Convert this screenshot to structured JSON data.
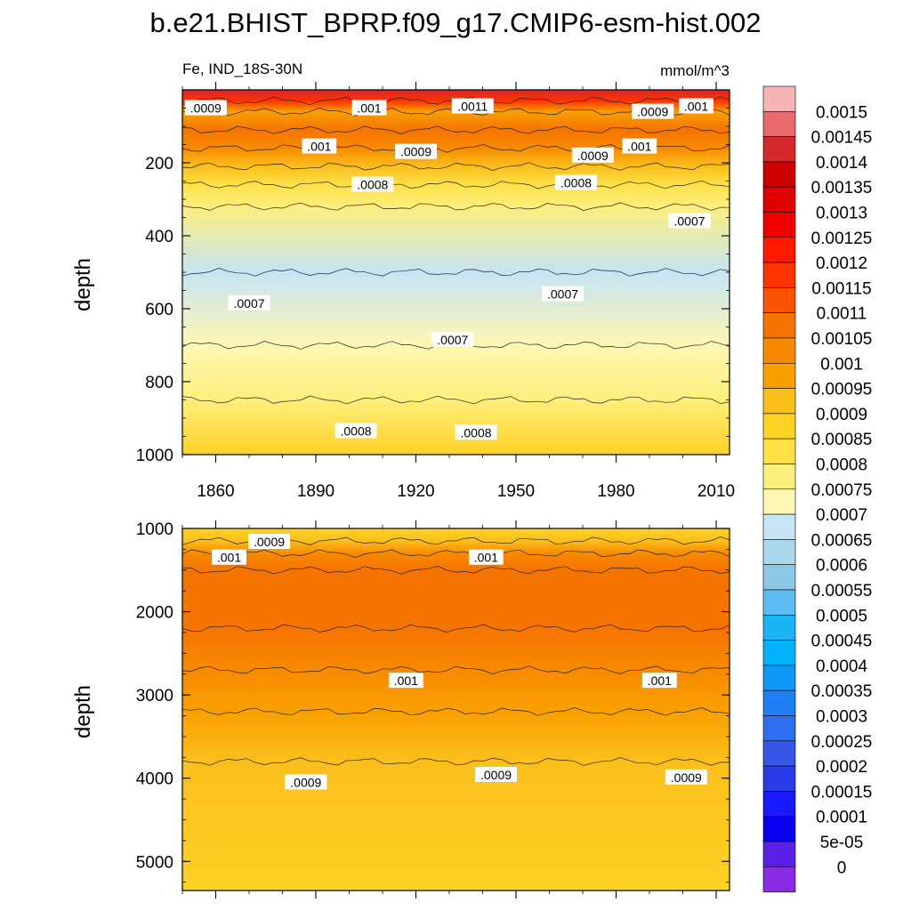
{
  "figure": {
    "title": "b.e21.BHIST_BPRP.f09_g17.CMIP6-esm-hist.002",
    "left_string": "Fe, IND_18S-30N",
    "right_string": "mmol/m^3"
  },
  "chart_data": [
    {
      "type": "heatmap",
      "panel": "upper",
      "xlabel": "",
      "ylabel": "depth",
      "xlim": [
        1850,
        2014
      ],
      "ylim": [
        1000,
        0
      ],
      "x_ticks": [
        "1860",
        "1890",
        "1920",
        "1950",
        "1980",
        "2010"
      ],
      "y_ticks": [
        "200",
        "400",
        "600",
        "800",
        "1000"
      ],
      "depth_profile": [
        {
          "depth": 0,
          "value": 0.00142
        },
        {
          "depth": 30,
          "value": 0.00115
        },
        {
          "depth": 60,
          "value": 0.00095
        },
        {
          "depth": 110,
          "value": 0.00105
        },
        {
          "depth": 160,
          "value": 0.001
        },
        {
          "depth": 210,
          "value": 0.00088
        },
        {
          "depth": 260,
          "value": 0.0008
        },
        {
          "depth": 320,
          "value": 0.00074
        },
        {
          "depth": 500,
          "value": 0.00067
        },
        {
          "depth": 700,
          "value": 0.00069
        },
        {
          "depth": 850,
          "value": 0.00074
        },
        {
          "depth": 1000,
          "value": 0.00083
        }
      ],
      "contour_labels": [
        {
          "text": ".0009",
          "x": 1857,
          "depth": 50
        },
        {
          "text": ".001",
          "x": 1906,
          "depth": 50
        },
        {
          "text": ".0011",
          "x": 1937,
          "depth": 45
        },
        {
          "text": ".0009",
          "x": 1991,
          "depth": 60
        },
        {
          "text": ".001",
          "x": 2004,
          "depth": 45
        },
        {
          "text": ".001",
          "x": 1891,
          "depth": 155
        },
        {
          "text": ".0009",
          "x": 1920,
          "depth": 170
        },
        {
          "text": ".0009",
          "x": 1973,
          "depth": 180
        },
        {
          "text": ".001",
          "x": 1987,
          "depth": 155
        },
        {
          "text": ".0008",
          "x": 1907,
          "depth": 260
        },
        {
          "text": ".0008",
          "x": 1968,
          "depth": 255
        },
        {
          "text": ".0007",
          "x": 2002,
          "depth": 360
        },
        {
          "text": ".0007",
          "x": 1870,
          "depth": 585
        },
        {
          "text": ".0007",
          "x": 1964,
          "depth": 560
        },
        {
          "text": ".0007",
          "x": 1931,
          "depth": 685
        },
        {
          "text": ".0008",
          "x": 1902,
          "depth": 935
        },
        {
          "text": ".0008",
          "x": 1938,
          "depth": 940
        }
      ]
    },
    {
      "type": "heatmap",
      "panel": "lower",
      "xlabel": "",
      "ylabel": "depth",
      "xlim": [
        1850,
        2014
      ],
      "ylim": [
        5350,
        1000
      ],
      "y_ticks": [
        "1000",
        "2000",
        "3000",
        "4000",
        "5000"
      ],
      "depth_profile": [
        {
          "depth": 1000,
          "value": 0.00086
        },
        {
          "depth": 1150,
          "value": 0.0009
        },
        {
          "depth": 1300,
          "value": 0.00098
        },
        {
          "depth": 1500,
          "value": 0.00106
        },
        {
          "depth": 2200,
          "value": 0.00104
        },
        {
          "depth": 2700,
          "value": 0.001
        },
        {
          "depth": 3200,
          "value": 0.00096
        },
        {
          "depth": 3800,
          "value": 0.00091
        },
        {
          "depth": 5350,
          "value": 0.00087
        }
      ],
      "contour_labels": [
        {
          "text": ".0009",
          "x": 1876,
          "depth": 1160
        },
        {
          "text": ".001",
          "x": 1864,
          "depth": 1350
        },
        {
          "text": ".001",
          "x": 1941,
          "depth": 1350
        },
        {
          "text": ".001",
          "x": 1917,
          "depth": 2830
        },
        {
          "text": ".001",
          "x": 1993,
          "depth": 2830
        },
        {
          "text": ".0009",
          "x": 1887,
          "depth": 4050
        },
        {
          "text": ".0009",
          "x": 1944,
          "depth": 3960
        },
        {
          "text": ".0009",
          "x": 2001,
          "depth": 3990
        }
      ]
    }
  ],
  "colorbar": {
    "labels": [
      "0.0015",
      "0.00145",
      "0.0014",
      "0.00135",
      "0.0013",
      "0.00125",
      "0.0012",
      "0.00115",
      "0.0011",
      "0.00105",
      "0.001",
      "0.00095",
      "0.0009",
      "0.00085",
      "0.0008",
      "0.00075",
      "0.0007",
      "0.00065",
      "0.0006",
      "0.00055",
      "0.0005",
      "0.00045",
      "0.0004",
      "0.00035",
      "0.0003",
      "0.00025",
      "0.0002",
      "0.00015",
      "0.0001",
      "5e-05",
      "0"
    ],
    "colors": [
      "#f7b4b7",
      "#e96a6d",
      "#d32a2c",
      "#cc0000",
      "#e00000",
      "#f20000",
      "#ff1a00",
      "#ff3300",
      "#fa5400",
      "#f57400",
      "#f88a00",
      "#f9a000",
      "#fbbf1c",
      "#fdd224",
      "#fde147",
      "#fdef7d",
      "#fef7b3",
      "#c6e4f4",
      "#acd8ee",
      "#8ec8e8",
      "#5cbcf2",
      "#1ab4f5",
      "#00b3f9",
      "#0b98f7",
      "#1f80f5",
      "#2e6cf0",
      "#3556e6",
      "#2a3ce8",
      "#1a1aff",
      "#0a00f0",
      "#5820e8",
      "#8a2be8"
    ]
  }
}
